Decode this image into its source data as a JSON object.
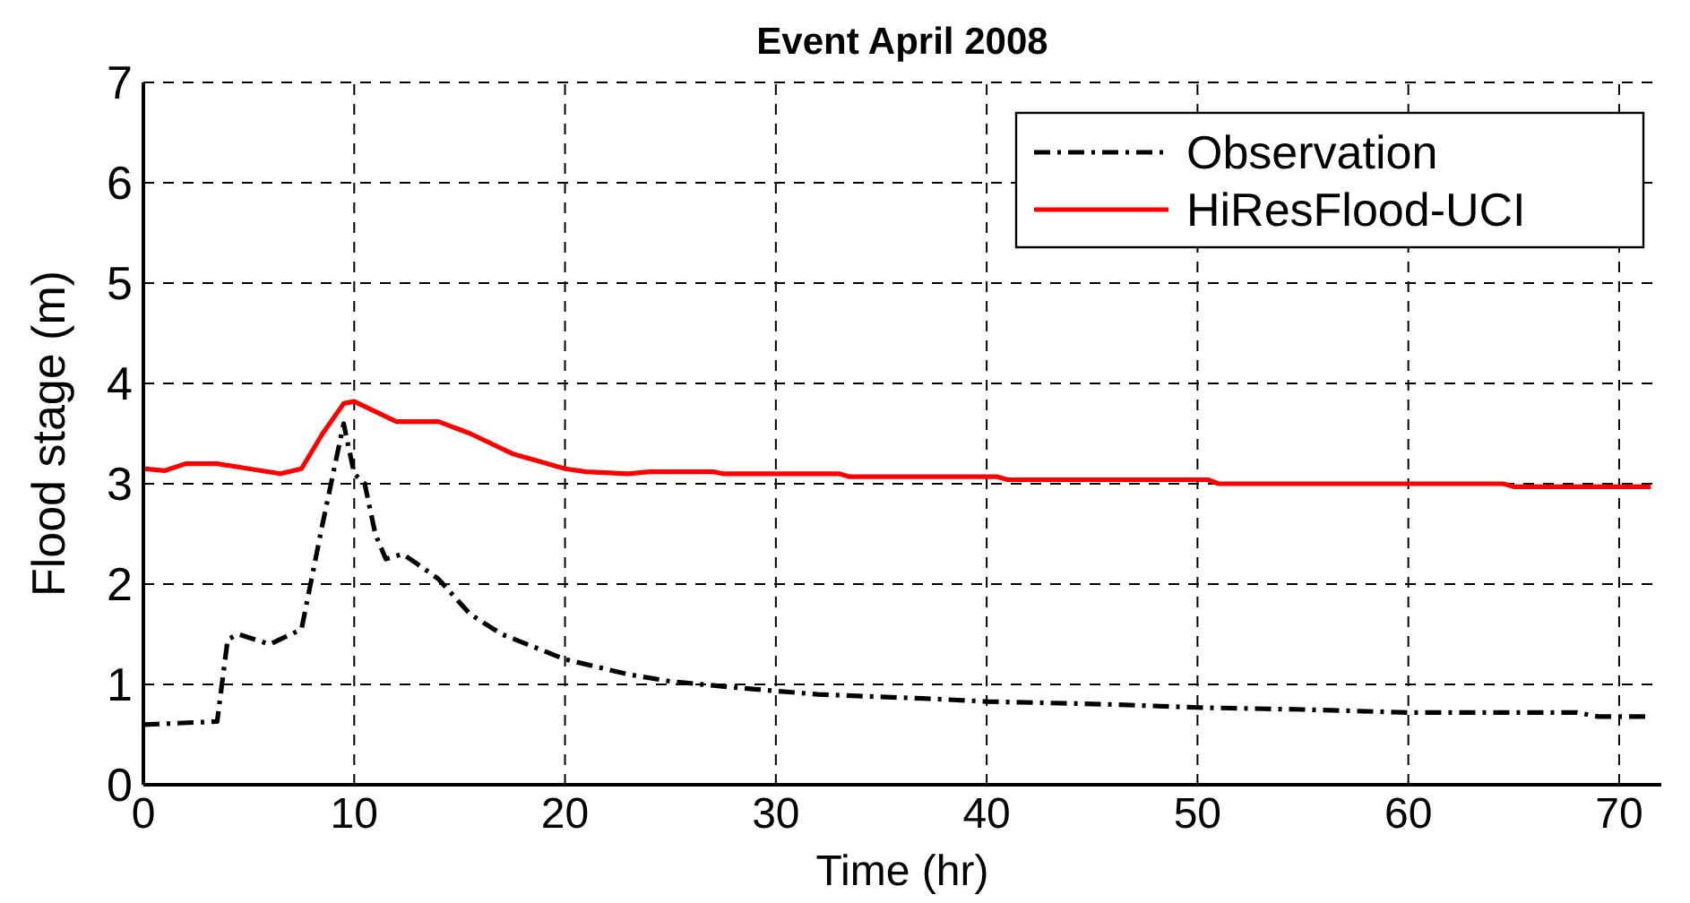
{
  "chart_data": {
    "type": "line",
    "title": "Event April 2008",
    "xlabel": "Time (hr)",
    "ylabel": "Flood stage (m)",
    "xlim": [
      0,
      72
    ],
    "xticks": [
      0,
      10,
      20,
      30,
      40,
      50,
      60,
      70
    ],
    "ylim": [
      0,
      7
    ],
    "yticks": [
      0,
      1,
      2,
      3,
      4,
      5,
      6,
      7
    ],
    "grid": true,
    "legend": "top right",
    "series": [
      {
        "name": "Observation",
        "color": "#000000",
        "line_style": "dashdot",
        "x": [
          0,
          3.5,
          4,
          4.5,
          6,
          7.5,
          8.5,
          9.5,
          10,
          10.5,
          11,
          11.5,
          12.3,
          13,
          14,
          15.5,
          17,
          20,
          23,
          25,
          28,
          32,
          37,
          40,
          46,
          50,
          55,
          60,
          68,
          69,
          71.5
        ],
        "values": [
          0.6,
          0.63,
          1.45,
          1.5,
          1.4,
          1.55,
          2.6,
          3.6,
          3.1,
          3.0,
          2.5,
          2.25,
          2.3,
          2.2,
          2.05,
          1.7,
          1.5,
          1.25,
          1.1,
          1.03,
          0.97,
          0.9,
          0.86,
          0.83,
          0.8,
          0.77,
          0.75,
          0.72,
          0.72,
          0.68,
          0.68
        ]
      },
      {
        "name": "HiResFlood-UCI",
        "color": "#ff0000",
        "line_style": "solid",
        "x": [
          0,
          1,
          2,
          3.5,
          5,
          6.5,
          7.5,
          8.5,
          9.5,
          10,
          11,
          12,
          14,
          15.5,
          17.5,
          20,
          21,
          23,
          24,
          27,
          27.5,
          33,
          33.5,
          40.5,
          41,
          50.5,
          51,
          64.5,
          65,
          71.5
        ],
        "values": [
          3.15,
          3.13,
          3.2,
          3.2,
          3.15,
          3.1,
          3.15,
          3.5,
          3.8,
          3.82,
          3.72,
          3.62,
          3.62,
          3.5,
          3.3,
          3.15,
          3.12,
          3.1,
          3.12,
          3.12,
          3.1,
          3.1,
          3.07,
          3.07,
          3.04,
          3.04,
          3.0,
          3.0,
          2.97,
          2.97
        ]
      }
    ]
  }
}
